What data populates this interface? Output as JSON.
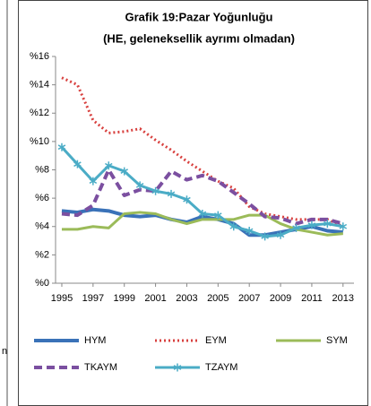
{
  "chart_data": {
    "type": "line",
    "title": "Grafik 19:Pazar Yoğunluğu",
    "subtitle": "(HE, geleneksellik ayrımı olmadan)",
    "side_text": "n",
    "x": [
      1995,
      1996,
      1997,
      1998,
      1999,
      2000,
      2001,
      2002,
      2003,
      2004,
      2005,
      2006,
      2007,
      2008,
      2009,
      2010,
      2011,
      2012,
      2013
    ],
    "xlim": [
      1994.6,
      2013.7
    ],
    "xticks": [
      1995,
      1997,
      1999,
      2001,
      2003,
      2005,
      2007,
      2009,
      2011,
      2013
    ],
    "ylim": [
      0,
      16
    ],
    "yticks": [
      {
        "value": 0,
        "label": "%0"
      },
      {
        "value": 2,
        "label": "%2"
      },
      {
        "value": 4,
        "label": "%4"
      },
      {
        "value": 6,
        "label": "%6"
      },
      {
        "value": 8,
        "label": "%8"
      },
      {
        "value": 10,
        "label": "%10"
      },
      {
        "value": 12,
        "label": "%12"
      },
      {
        "value": 14,
        "label": "%14"
      },
      {
        "value": 16,
        "label": "%16"
      }
    ],
    "series": [
      {
        "name": "HYM",
        "color": "#3a72b8",
        "style": "solid",
        "width": 4,
        "values": [
          5.1,
          5.0,
          5.2,
          5.1,
          4.8,
          4.7,
          4.8,
          4.5,
          4.3,
          4.7,
          4.5,
          4.2,
          3.4,
          3.4,
          3.6,
          3.8,
          4.0,
          3.7,
          3.6
        ]
      },
      {
        "name": "EYM",
        "color": "#d8413f",
        "style": "dotted",
        "width": 3,
        "values": [
          14.5,
          14.0,
          11.5,
          10.6,
          10.7,
          10.9,
          10.1,
          9.4,
          8.6,
          7.9,
          7.2,
          6.7,
          5.4,
          4.9,
          4.7,
          4.5,
          4.5,
          4.5,
          4.0
        ]
      },
      {
        "name": "SYM",
        "color": "#9bbb59",
        "style": "solid",
        "width": 3,
        "values": [
          3.8,
          3.8,
          4.0,
          3.9,
          4.9,
          5.0,
          4.9,
          4.5,
          4.2,
          4.5,
          4.5,
          4.5,
          4.8,
          4.8,
          4.2,
          3.8,
          3.6,
          3.4,
          3.5
        ]
      },
      {
        "name": "TKAYM",
        "color": "#7b4fa0",
        "style": "dashed",
        "width": 4,
        "values": [
          4.9,
          4.8,
          5.5,
          8.0,
          6.2,
          6.6,
          6.5,
          7.9,
          7.3,
          7.6,
          7.2,
          6.4,
          5.6,
          4.7,
          4.6,
          4.2,
          4.5,
          4.5,
          4.2
        ]
      },
      {
        "name": "TZAYM",
        "color": "#4bacc6",
        "style": "solid",
        "width": 3,
        "marker": "star",
        "values": [
          9.6,
          8.4,
          7.2,
          8.3,
          7.9,
          6.9,
          6.5,
          6.3,
          5.9,
          4.9,
          4.8,
          4.0,
          3.7,
          3.3,
          3.4,
          3.9,
          4.1,
          4.2,
          4.0
        ]
      }
    ]
  }
}
